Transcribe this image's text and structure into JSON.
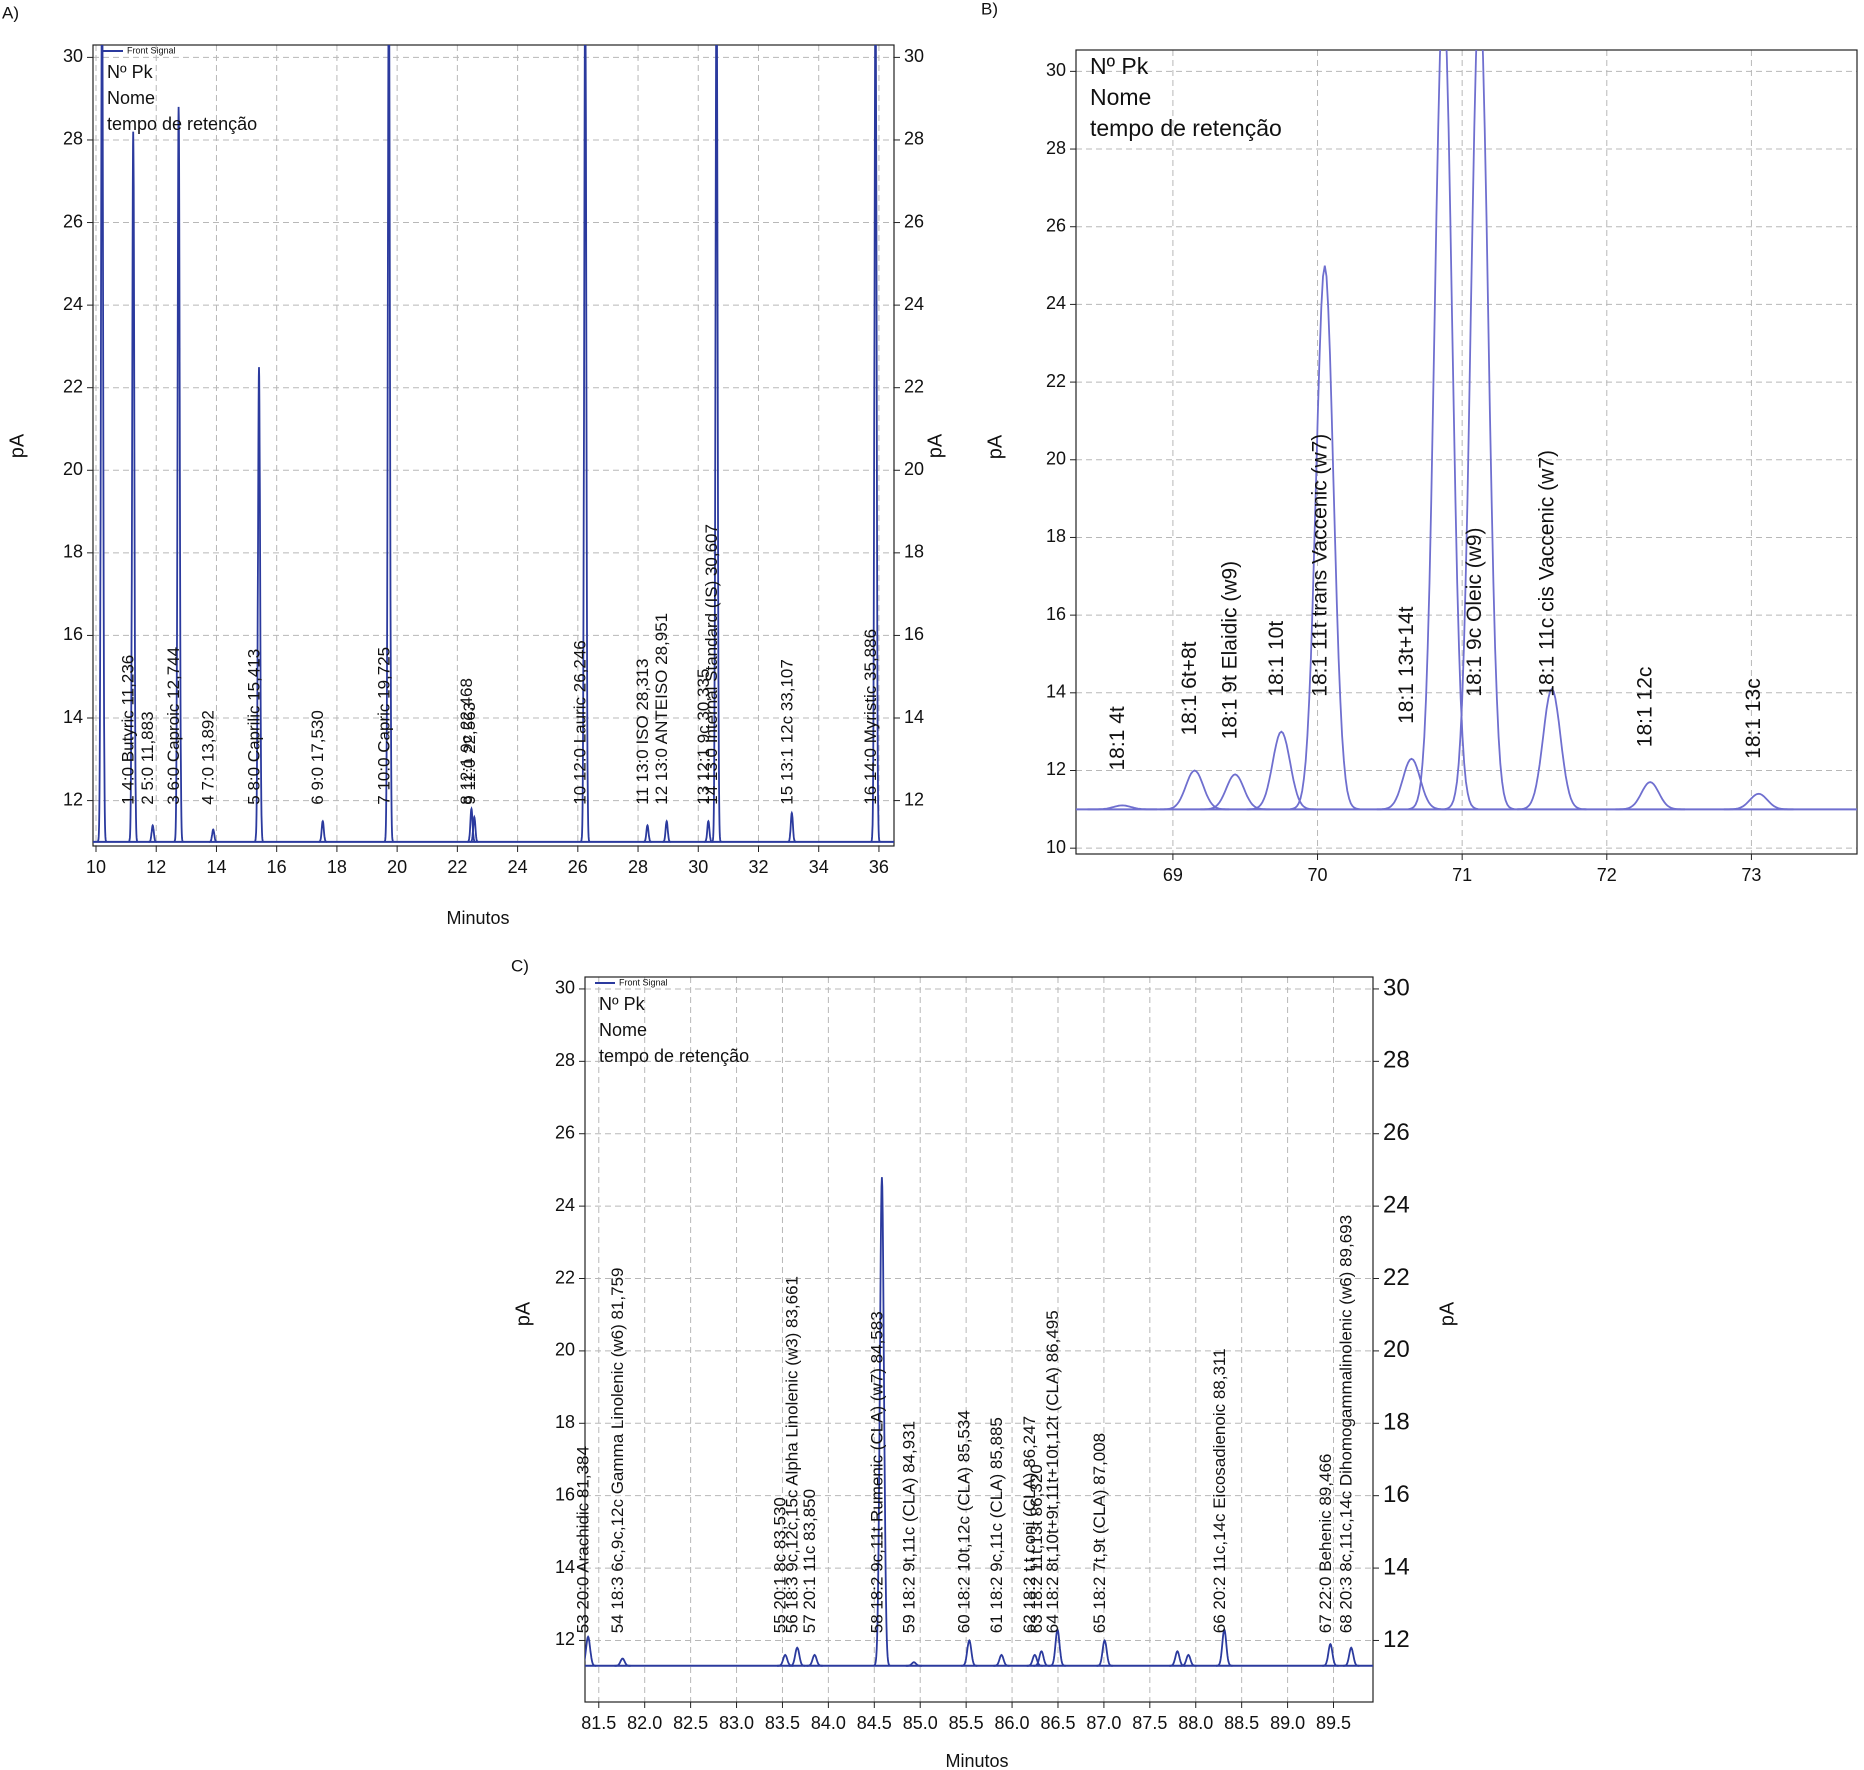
{
  "chart_data": [
    {
      "type": "chromatogram",
      "panel": "A)",
      "legend": "Front Signal",
      "info": [
        "Nº Pk",
        "Nome",
        "tempo de retenção"
      ],
      "ylabel": "pA",
      "y2label": "pA",
      "xlabel": "Minutos",
      "color": "#2b3a9e",
      "xlim": [
        9.9,
        36.5
      ],
      "ylim": [
        10.9,
        30.3
      ],
      "xticks": [
        10,
        12,
        14,
        16,
        18,
        20,
        22,
        24,
        26,
        28,
        30,
        32,
        34,
        36
      ],
      "yticks": [
        12,
        14,
        16,
        18,
        20,
        22,
        24,
        26,
        28,
        30
      ],
      "y2ticks": [
        12,
        14,
        16,
        18,
        20,
        22,
        24,
        26,
        28,
        30
      ],
      "baseline": 11.0,
      "peaks": [
        {
          "x": 10.2,
          "height": 32
        },
        {
          "x": 11.236,
          "height": 28.2,
          "label": "1 4:0 Butyric 11,236"
        },
        {
          "x": 11.883,
          "height": 11.4,
          "label": "2 5:0 11,883"
        },
        {
          "x": 12.744,
          "height": 28.8,
          "label": "3 6:0 Caproic 12,744"
        },
        {
          "x": 13.892,
          "height": 11.3,
          "label": "4 7:0 13,892"
        },
        {
          "x": 15.413,
          "height": 22.5,
          "label": "5 8:0 Caprilic 15,413"
        },
        {
          "x": 17.53,
          "height": 11.5,
          "label": "6 9:0 17,530"
        },
        {
          "x": 19.725,
          "height": 32,
          "label": "7 10:0 Capric 19,725"
        },
        {
          "x": 22.468,
          "height": 11.8,
          "label": "8 12:1 9c 22,468"
        },
        {
          "x": 22.563,
          "height": 11.6,
          "label": "9 11:0 22,563"
        },
        {
          "x": 26.246,
          "height": 32,
          "label": "10 12:0 Lauric 26,246"
        },
        {
          "x": 28.313,
          "height": 11.4,
          "label": "11 13:0 ISO 28,313"
        },
        {
          "x": 28.951,
          "height": 11.5,
          "label": "12 13:0 ANTEISO 28,951"
        },
        {
          "x": 30.335,
          "height": 11.5,
          "label": "13 12:1 9c 30,335"
        },
        {
          "x": 30.607,
          "height": 32,
          "label": "14 13:0 Internal Standard (IS) 30,607"
        },
        {
          "x": 33.107,
          "height": 11.7,
          "label": "15 13:1 12c 33,107"
        },
        {
          "x": 35.886,
          "height": 32,
          "label": "16 14:0 Myristic 35,886"
        }
      ]
    },
    {
      "type": "chromatogram",
      "panel": "B)",
      "info": [
        "Nº Pk",
        "Nome",
        "tempo de retenção"
      ],
      "ylabel": "pA",
      "color": "#6f6fcf",
      "xlim": [
        68.33,
        73.73
      ],
      "ylim": [
        9.85,
        30.55
      ],
      "xticks": [
        69,
        70,
        71,
        72,
        73
      ],
      "yticks": [
        10,
        12,
        14,
        16,
        18,
        20,
        22,
        24,
        26,
        28,
        30
      ],
      "baseline": 11.0,
      "peaks": [
        {
          "x": 68.65,
          "height": 11.1,
          "label": "18:1 4t"
        },
        {
          "x": 69.15,
          "height": 12.0,
          "label": "18:1 6t+8t"
        },
        {
          "x": 69.43,
          "height": 11.9,
          "label": "18:1 9t Elaidic (w9)"
        },
        {
          "x": 69.75,
          "height": 13.0,
          "label": "18:1 10t"
        },
        {
          "x": 70.05,
          "height": 25.0,
          "label": "18:1 11t trans Vaccenic (w7)"
        },
        {
          "x": 70.65,
          "height": 12.3,
          "label": "18:1 13t+14t"
        },
        {
          "x": 70.87,
          "height": 32
        },
        {
          "x": 71.12,
          "height": 32,
          "label": "18:1 9c Oleic (w9)"
        },
        {
          "x": 71.62,
          "height": 14.1,
          "label": "18:1 11c cis Vaccenic (w7)"
        },
        {
          "x": 72.3,
          "height": 11.7,
          "label": "18:1 12c"
        },
        {
          "x": 73.05,
          "height": 11.4,
          "label": "18:1 13c"
        }
      ]
    },
    {
      "type": "chromatogram",
      "panel": "C)",
      "legend": "Front Signal",
      "info": [
        "Nº Pk",
        "Nome",
        "tempo de retenção"
      ],
      "ylabel": "pA",
      "y2label": "pA",
      "xlabel": "Minutos",
      "color": "#2b3a9e",
      "xlim": [
        81.35,
        89.93
      ],
      "ylim": [
        10.3,
        30.33
      ],
      "xticks": [
        81.5,
        {
          "value": 82,
          "label": "82.0"
        },
        82.5,
        {
          "value": 83,
          "label": "83.0"
        },
        83.5,
        {
          "value": 84,
          "label": "84.0"
        },
        84.5,
        {
          "value": 85,
          "label": "85.0"
        },
        85.5,
        {
          "value": 86,
          "label": "86.0"
        },
        86.5,
        {
          "value": 87,
          "label": "87.0"
        },
        87.5,
        {
          "value": 88,
          "label": "88.0"
        },
        88.5,
        {
          "value": 89,
          "label": "89.0"
        },
        89.5
      ],
      "yticks": [
        12,
        14,
        16,
        18,
        20,
        22,
        24,
        26,
        28,
        30
      ],
      "y2ticks": [
        12,
        14,
        16,
        18,
        20,
        22,
        24,
        26,
        28,
        30
      ],
      "baseline": 11.3,
      "peaks": [
        {
          "x": 81.384,
          "height": 12.1,
          "label": "53 20:0 Arachidic 81,384"
        },
        {
          "x": 81.759,
          "height": 11.5,
          "label": "54 18:3 6c,9c,12c Gamma Linolenic (w6) 81,759"
        },
        {
          "x": 83.53,
          "height": 11.6,
          "label": "55 20:1 8c 83,530"
        },
        {
          "x": 83.661,
          "height": 11.8,
          "label": "56 18:3 9c,12c,15c Alpha Linolenic (w3) 83,661"
        },
        {
          "x": 83.85,
          "height": 11.6,
          "label": "57 20:1 11c 83,850"
        },
        {
          "x": 84.583,
          "height": 24.8,
          "label": "58 18:2 9c,11t Rumenic (CLA) (w7) 84,583"
        },
        {
          "x": 84.931,
          "height": 11.4,
          "label": "59 18:2 9t,11c (CLA) 84,931"
        },
        {
          "x": 85.534,
          "height": 12.0,
          "label": "60 18:2 10t,12c (CLA) 85,534"
        },
        {
          "x": 85.885,
          "height": 11.6,
          "label": "61 18:2 9c,11c (CLA) 85,885"
        },
        {
          "x": 86.247,
          "height": 11.6,
          "label": "62 18:2 t,t conj (CLA) 86,247"
        },
        {
          "x": 86.32,
          "height": 11.7,
          "label": "63 18:2 11t,13t 86,320"
        },
        {
          "x": 86.495,
          "height": 12.3,
          "label": "64 18:2 8t,10t+9t,11t+10t,12t (CLA) 86,495"
        },
        {
          "x": 87.008,
          "height": 12.0,
          "label": "65 18:2 7t,9t (CLA) 87,008"
        },
        {
          "x": 87.8,
          "height": 11.7
        },
        {
          "x": 87.92,
          "height": 11.6
        },
        {
          "x": 88.311,
          "height": 12.3,
          "label": "66 20:2 11c,14c Eicosadienoic 88,311"
        },
        {
          "x": 89.466,
          "height": 11.9,
          "label": "67 22:0 Behenic 89,466"
        },
        {
          "x": 89.693,
          "height": 11.8,
          "label": "68 20:3 8c,11c,14c Dihomogammalinolenic (w6) 89,693"
        }
      ]
    }
  ]
}
